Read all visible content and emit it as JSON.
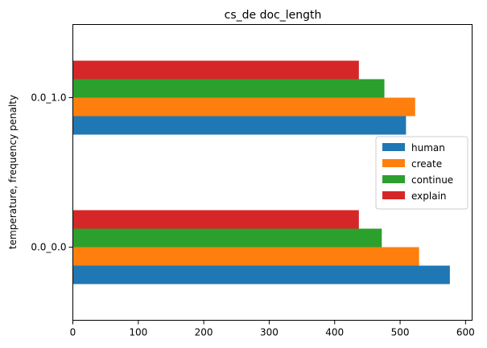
{
  "chart_data": {
    "type": "bar",
    "orientation": "horizontal",
    "title": "cs_de doc_length",
    "xlabel": "",
    "ylabel": "temperature, frequency penalty",
    "categories": [
      "0.0_0.0",
      "0.0_1.0"
    ],
    "xlim": [
      0,
      610
    ],
    "xticks": [
      0,
      100,
      200,
      300,
      400,
      500,
      600
    ],
    "grid": false,
    "legend_position": "center-right",
    "series": [
      {
        "name": "human",
        "color": "#1f77b4",
        "values": [
          576,
          509
        ]
      },
      {
        "name": "create",
        "color": "#ff7f0e",
        "values": [
          529,
          523
        ]
      },
      {
        "name": "continue",
        "color": "#2ca02c",
        "values": [
          472,
          476
        ]
      },
      {
        "name": "explain",
        "color": "#d62728",
        "values": [
          437,
          437
        ]
      }
    ]
  }
}
